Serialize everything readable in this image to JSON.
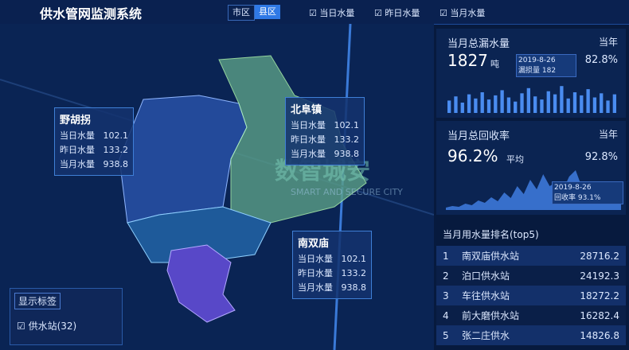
{
  "header": {
    "title": "供水管网监测系统",
    "tabs": [
      "市区",
      "县区"
    ],
    "checkboxes": [
      "当日水量",
      "昨日水量",
      "当月水量"
    ]
  },
  "map": {
    "popups": [
      {
        "title": "野胡拐",
        "rows": [
          {
            "label": "当日水量",
            "value": "102.1"
          },
          {
            "label": "昨日水量",
            "value": "133.2"
          },
          {
            "label": "当月水量",
            "value": "938.8"
          }
        ]
      },
      {
        "title": "北阜镇",
        "rows": [
          {
            "label": "当日水量",
            "value": "102.1"
          },
          {
            "label": "昨日水量",
            "value": "133.2"
          },
          {
            "label": "当月水量",
            "value": "938.8"
          }
        ]
      },
      {
        "title": "南双庙",
        "rows": [
          {
            "label": "当日水量",
            "value": "102.1"
          },
          {
            "label": "昨日水量",
            "value": "133.2"
          },
          {
            "label": "当月水量",
            "value": "938.8"
          }
        ]
      }
    ],
    "legend": {
      "title": "显示标签",
      "item": "供水站(32)"
    },
    "watermark": {
      "cn": "数智城安",
      "en": "SMART AND SECURE CITY"
    }
  },
  "leak": {
    "title": "当月总漏水量",
    "year_label": "当年",
    "value": "1827",
    "unit": "吨",
    "percent": "82.8%",
    "tooltip": {
      "date": "2019-8-26",
      "label": "漏损量",
      "value": "182"
    },
    "bars": [
      12,
      16,
      10,
      18,
      14,
      20,
      13,
      17,
      22,
      15,
      11,
      19,
      24,
      16,
      13,
      21,
      18,
      26,
      14,
      20,
      17,
      23,
      15,
      19,
      12,
      18
    ]
  },
  "recovery": {
    "title": "当月总回收率",
    "year_label": "当年",
    "value": "96.2%",
    "avg": "平均",
    "percent": "92.8%",
    "tooltip": {
      "date": "2019-8-26",
      "label": "回收率",
      "value": "93.1%"
    },
    "area": [
      3,
      5,
      4,
      8,
      6,
      12,
      9,
      16,
      11,
      22,
      15,
      30,
      20,
      38,
      26,
      45,
      30,
      35,
      24,
      42,
      50,
      28,
      18,
      32,
      22,
      14,
      20,
      10
    ]
  },
  "ranking": {
    "title": "当月用水量排名(top5)",
    "rows": [
      [
        "1",
        "南双庙供水站",
        "28716.2"
      ],
      [
        "2",
        "泊口供水站",
        "24192.3"
      ],
      [
        "3",
        "车往供水站",
        "18272.2"
      ],
      [
        "4",
        "前大磨供水站",
        "16282.4"
      ],
      [
        "5",
        "张二庄供水",
        "14826.8"
      ]
    ]
  }
}
